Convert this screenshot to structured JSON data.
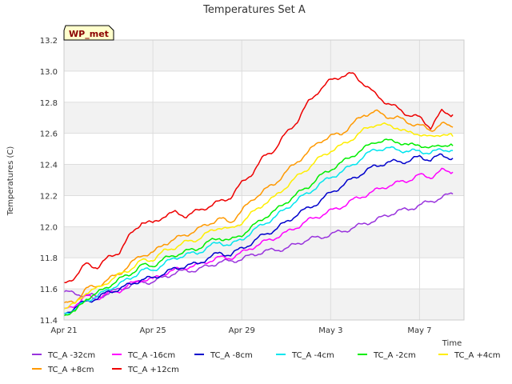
{
  "chart_data": {
    "type": "line",
    "title": "Temperatures Set A",
    "xlabel": "Time",
    "ylabel": "Temperatures (C)",
    "badge": "WP_met",
    "x_unit": "days since Apr 21",
    "xlim": [
      0,
      18
    ],
    "ylim": [
      11.4,
      13.2
    ],
    "grid": true,
    "legend": "bottom",
    "x_ticks": [
      {
        "value": 0,
        "label": "Apr 21"
      },
      {
        "value": 4,
        "label": "Apr 25"
      },
      {
        "value": 8,
        "label": "Apr 29"
      },
      {
        "value": 12,
        "label": "May 3"
      },
      {
        "value": 16,
        "label": "May 7"
      }
    ],
    "y_ticks": [
      11.4,
      11.6,
      11.8,
      12.0,
      12.2,
      12.4,
      12.6,
      12.8,
      13.0,
      13.2
    ],
    "x": [
      0,
      0.5,
      1,
      1.5,
      2,
      2.5,
      3,
      3.5,
      4,
      4.5,
      5,
      5.5,
      6,
      6.5,
      7,
      7.5,
      8,
      8.5,
      9,
      9.5,
      10,
      10.5,
      11,
      11.5,
      12,
      12.5,
      13,
      13.5,
      14,
      14.5,
      15,
      15.5,
      16,
      16.5,
      17,
      17.5
    ],
    "series": [
      {
        "name": "TC_A -32cm",
        "color": "#9933dd",
        "values": [
          11.58,
          11.57,
          11.56,
          11.55,
          11.57,
          11.6,
          11.62,
          11.65,
          11.64,
          11.68,
          11.7,
          11.72,
          11.72,
          11.75,
          11.77,
          11.78,
          11.79,
          11.82,
          11.84,
          11.85,
          11.86,
          11.89,
          11.92,
          11.93,
          11.95,
          11.97,
          11.99,
          12.02,
          12.04,
          12.07,
          12.1,
          12.11,
          12.14,
          12.16,
          12.19,
          12.21
        ]
      },
      {
        "name": "TC_A +8cm",
        "color": "#ff9900",
        "values": [
          11.5,
          11.52,
          11.6,
          11.62,
          11.66,
          11.7,
          11.76,
          11.82,
          11.83,
          11.89,
          11.92,
          11.95,
          11.98,
          12.02,
          12.05,
          12.03,
          12.1,
          12.18,
          12.23,
          12.28,
          12.35,
          12.42,
          12.48,
          12.55,
          12.58,
          12.6,
          12.66,
          12.72,
          12.74,
          12.71,
          12.7,
          12.67,
          12.65,
          12.62,
          12.66,
          12.64
        ]
      },
      {
        "name": "TC_A -16cm",
        "color": "#ff00ff",
        "values": [
          11.46,
          11.5,
          11.55,
          11.54,
          11.57,
          11.59,
          11.63,
          11.66,
          11.66,
          11.7,
          11.72,
          11.74,
          11.75,
          11.78,
          11.8,
          11.8,
          11.83,
          11.87,
          11.9,
          11.93,
          11.96,
          12.0,
          12.04,
          12.07,
          12.1,
          12.13,
          12.17,
          12.2,
          12.23,
          12.26,
          12.28,
          12.3,
          12.33,
          12.32,
          12.36,
          12.35
        ]
      },
      {
        "name": "TC_A +12cm",
        "color": "#ee0000",
        "values": [
          11.63,
          11.68,
          11.76,
          11.74,
          11.8,
          11.84,
          11.95,
          12.03,
          12.02,
          12.07,
          12.09,
          12.07,
          12.1,
          12.13,
          12.16,
          12.19,
          12.28,
          12.35,
          12.45,
          12.5,
          12.6,
          12.68,
          12.8,
          12.88,
          12.94,
          12.97,
          12.98,
          12.92,
          12.85,
          12.8,
          12.76,
          12.72,
          12.7,
          12.64,
          12.74,
          12.72
        ]
      },
      {
        "name": "TC_A -8cm",
        "color": "#0000cc",
        "values": [
          11.44,
          11.48,
          11.52,
          11.54,
          11.58,
          11.6,
          11.63,
          11.66,
          11.67,
          11.7,
          11.73,
          11.75,
          11.76,
          11.8,
          11.83,
          11.82,
          11.86,
          11.9,
          11.95,
          11.98,
          12.03,
          12.08,
          12.12,
          12.16,
          12.22,
          12.26,
          12.31,
          12.35,
          12.39,
          12.41,
          12.42,
          12.42,
          12.45,
          12.43,
          12.46,
          12.44
        ]
      },
      {
        "name": "TC_A -4cm",
        "color": "#00e5ee",
        "values": [
          11.45,
          11.46,
          11.53,
          11.55,
          11.6,
          11.63,
          11.67,
          11.72,
          11.72,
          11.76,
          11.8,
          11.82,
          11.83,
          11.87,
          11.9,
          11.88,
          11.92,
          11.97,
          12.02,
          12.06,
          12.12,
          12.17,
          12.22,
          12.27,
          12.32,
          12.35,
          12.4,
          12.45,
          12.5,
          12.5,
          12.5,
          12.48,
          12.49,
          12.47,
          12.5,
          12.49
        ]
      },
      {
        "name": "TC_A -2cm",
        "color": "#00ee00",
        "values": [
          11.44,
          11.45,
          11.54,
          11.57,
          11.62,
          11.66,
          11.7,
          11.75,
          11.75,
          11.79,
          11.82,
          11.84,
          11.86,
          11.9,
          11.93,
          11.91,
          11.95,
          12.0,
          12.06,
          12.1,
          12.16,
          12.21,
          12.26,
          12.32,
          12.37,
          12.41,
          12.46,
          12.5,
          12.55,
          12.55,
          12.55,
          12.52,
          12.53,
          12.5,
          12.53,
          12.52
        ]
      },
      {
        "name": "TC_A +4cm",
        "color": "#ffee00",
        "values": [
          11.48,
          11.5,
          11.58,
          11.6,
          11.65,
          11.69,
          11.73,
          11.78,
          11.79,
          11.84,
          11.87,
          11.9,
          11.92,
          11.96,
          12.0,
          11.98,
          12.03,
          12.09,
          12.15,
          12.19,
          12.26,
          12.32,
          12.38,
          12.44,
          12.49,
          12.52,
          12.57,
          12.62,
          12.66,
          12.65,
          12.64,
          12.6,
          12.6,
          12.57,
          12.6,
          12.58
        ]
      }
    ]
  }
}
